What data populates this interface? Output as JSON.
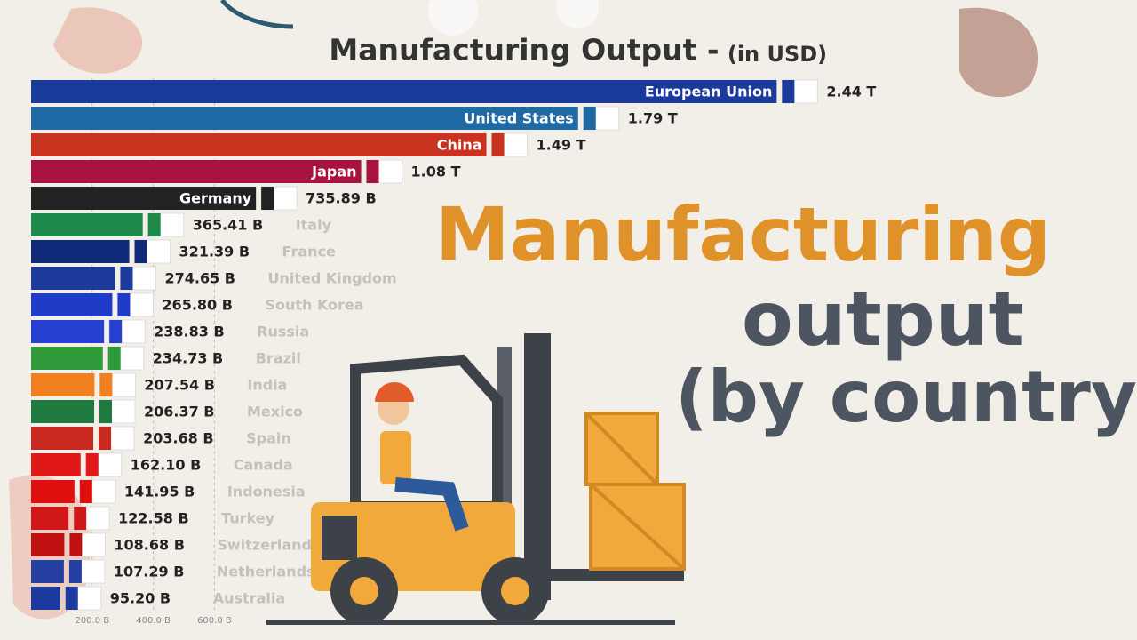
{
  "chart_data": {
    "type": "bar",
    "orientation": "horizontal",
    "title": "Manufacturing Output -",
    "subtitle": "(in USD)",
    "categories": [
      "European Union",
      "United States",
      "China",
      "Japan",
      "Germany",
      "Italy",
      "France",
      "United Kingdom",
      "South Korea",
      "Russia",
      "Brazil",
      "India",
      "Mexico",
      "Spain",
      "Canada",
      "Indonesia",
      "Turkey",
      "Switzerland",
      "Netherlands",
      "Australia"
    ],
    "values": [
      2440,
      1790,
      1490,
      1080,
      735.89,
      365.41,
      321.39,
      274.65,
      265.8,
      238.83,
      234.73,
      207.54,
      206.37,
      203.68,
      162.1,
      141.95,
      122.58,
      108.68,
      107.29,
      95.2
    ],
    "value_labels": [
      "2.44 T",
      "1.79 T",
      "1.49 T",
      "1.08 T",
      "735.89 B",
      "365.41 B",
      "321.39 B",
      "274.65 B",
      "265.80 B",
      "238.83 B",
      "234.73 B",
      "207.54 B",
      "206.37 B",
      "203.68 B",
      "162.10 B",
      "141.95 B",
      "122.58 B",
      "108.68 B",
      "107.29 B",
      "95.20 B"
    ],
    "colors": [
      "#1a3a9c",
      "#1f6aa5",
      "#c8321e",
      "#a8123e",
      "#222222",
      "#1e8a4a",
      "#102a7a",
      "#1e3a9a",
      "#1f3bc8",
      "#2540d0",
      "#2f9a3a",
      "#f08020",
      "#1e7a3e",
      "#c8281e",
      "#e01818",
      "#e01010",
      "#d01818",
      "#c01010",
      "#2540a0",
      "#1a3aa0"
    ],
    "xlim": [
      0,
      3000
    ],
    "xticks": [
      {
        "value": 200,
        "label": "200.0 B"
      },
      {
        "value": 400,
        "label": "400.0 B"
      },
      {
        "value": 600,
        "label": "600.0 B"
      }
    ],
    "grid": true,
    "annotations": [
      "Manufacturing",
      "output",
      "(by country)"
    ]
  }
}
